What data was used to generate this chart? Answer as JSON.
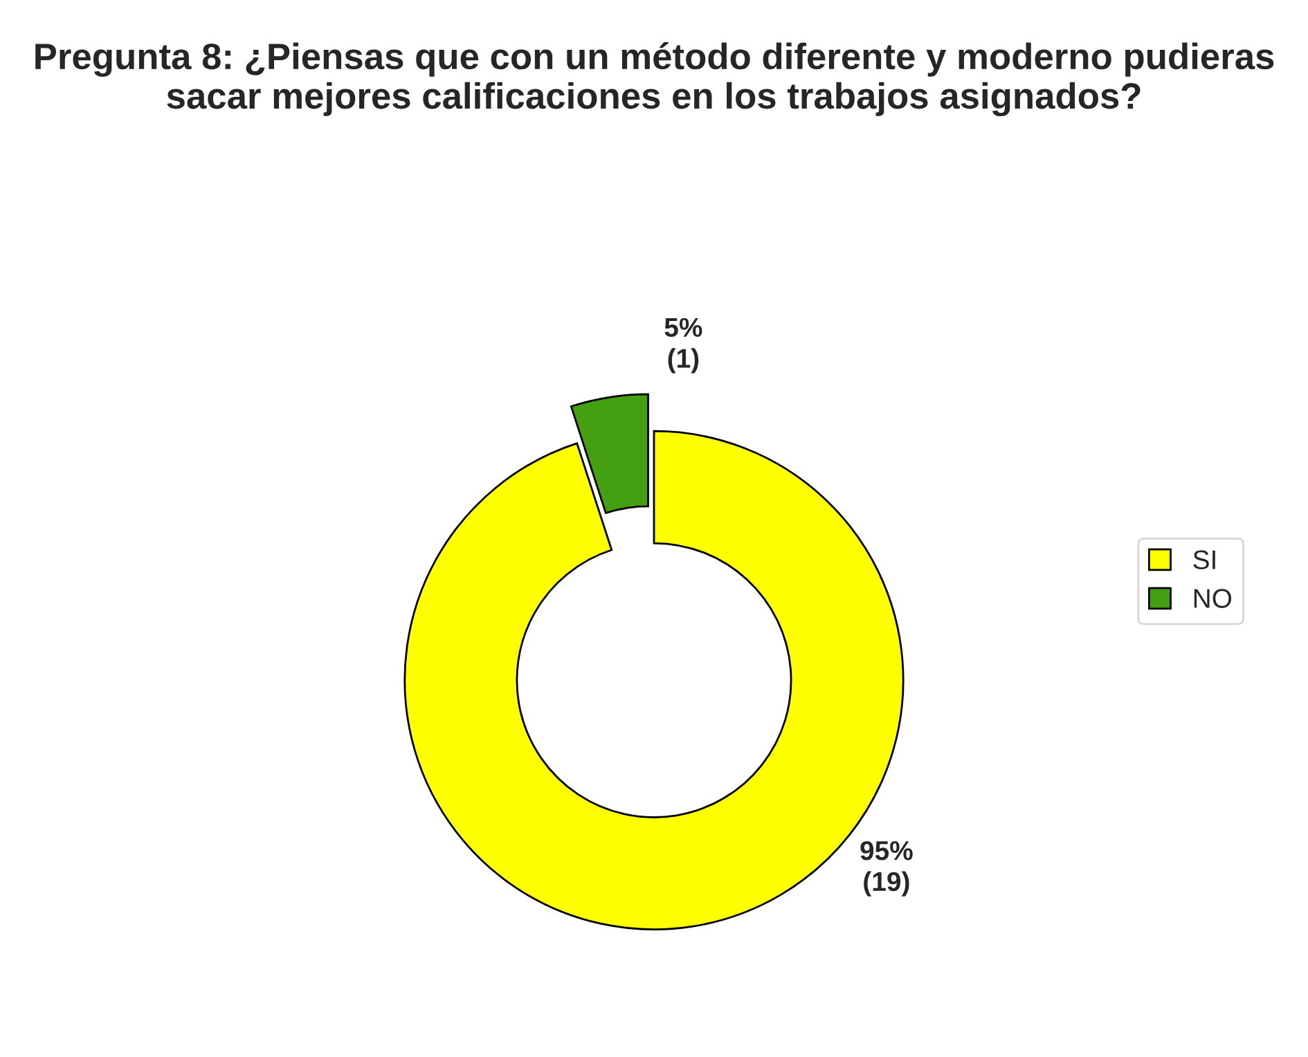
{
  "chart_data": {
    "type": "donut",
    "title": "Pregunta 8: ¿Piensas que con un método diferente y moderno pudieras sacar mejores calificaciones en los trabajos asignados?",
    "categories": [
      "SI",
      "NO"
    ],
    "values": [
      95,
      5
    ],
    "colors": [
      "#ffff00",
      "#44a010"
    ],
    "value_labels": [
      "95%\n(19)",
      "5%\n(1)"
    ],
    "legend": "right"
  }
}
